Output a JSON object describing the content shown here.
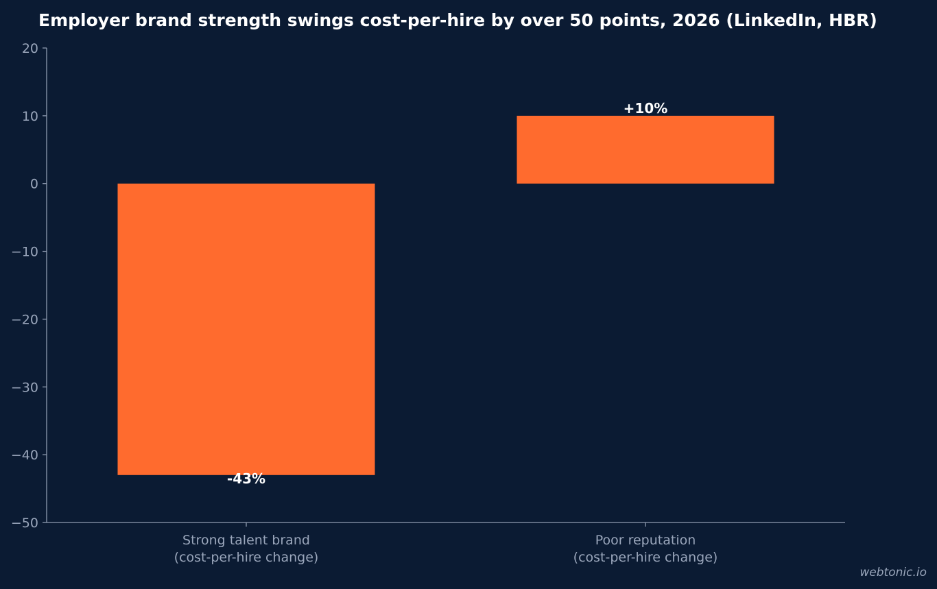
{
  "chart_data": {
    "type": "bar",
    "title": "Employer brand strength swings cost-per-hire by over 50 points, 2026 (LinkedIn, HBR)",
    "categories": [
      [
        "Strong talent brand",
        "(cost-per-hire change)"
      ],
      [
        "Poor reputation",
        "(cost-per-hire change)"
      ]
    ],
    "values": [
      -43,
      10
    ],
    "data_labels": [
      "-43%",
      "+10%"
    ],
    "ylim": [
      -50,
      20
    ],
    "yticks": [
      20,
      10,
      0,
      -10,
      -20,
      -30,
      -40,
      -50
    ],
    "ytick_labels": [
      "20",
      "10",
      "0",
      "−10",
      "−20",
      "−30",
      "−40",
      "−50"
    ],
    "xlabel": "",
    "ylabel": "",
    "grid": false,
    "colors": {
      "background": "#0b1b33",
      "bar": "#ff6b2e",
      "axis": "#8f9bb0",
      "tick_text": "#9aa6bb",
      "title": "#ffffff",
      "label": "#ffffff"
    }
  },
  "watermark": "webtonic.io"
}
